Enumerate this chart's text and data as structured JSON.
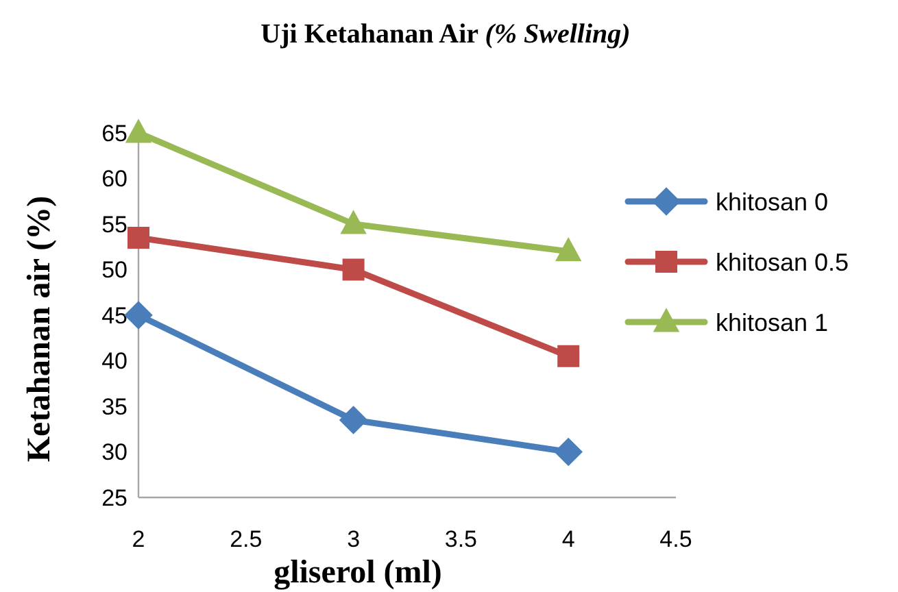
{
  "chart_data": {
    "type": "line",
    "title": "Uji Ketahanan Air (% Swelling)",
    "xlabel": "gliserol (ml)",
    "ylabel": "Ketahanan air (%)",
    "x": [
      2,
      3,
      4
    ],
    "series": [
      {
        "name": "khitosan 0",
        "color": "#4a7ebb",
        "marker": "diamond",
        "values": [
          45,
          33.5,
          30
        ]
      },
      {
        "name": "khitosan 0.5",
        "color": "#be4b48",
        "marker": "square",
        "values": [
          53.5,
          50,
          40.5
        ]
      },
      {
        "name": "khitosan 1",
        "color": "#98b954",
        "marker": "triangle",
        "values": [
          65,
          55,
          52
        ]
      }
    ],
    "xlim": [
      2,
      4.5
    ],
    "xticks": [
      2,
      2.5,
      3,
      3.5,
      4,
      4.5
    ],
    "ylim": [
      25,
      65
    ],
    "yticks": [
      25,
      30,
      35,
      40,
      45,
      50,
      55,
      60,
      65
    ],
    "grid": false,
    "legend": "right",
    "line_style": "solid"
  }
}
